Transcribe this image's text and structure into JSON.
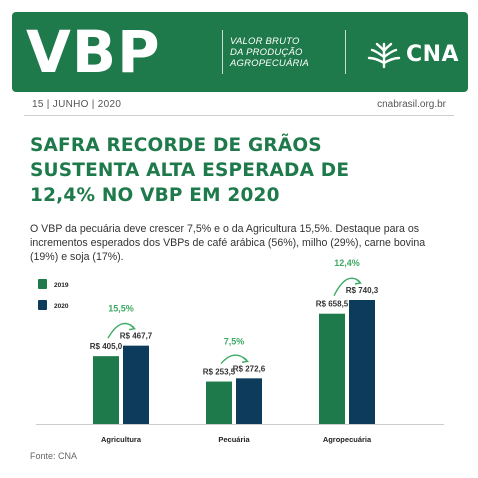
{
  "banner": {
    "brand": "VBP",
    "subtitle_lines": [
      "VALOR BRUTO",
      "DA PRODUÇÃO",
      "AGROPECUÁRIA"
    ],
    "logo_text": "CNA",
    "background": "#1e7a4a"
  },
  "dateline": "15 | JUNHO | 2020",
  "site": "cnabrasil.org.br",
  "headline_lines": [
    "SAFRA RECORDE DE GRÃOS",
    "SUSTENTA ALTA ESPERADA DE",
    "12,4% NO VBP EM 2020"
  ],
  "lead": "O VBP da pecuária deve crescer 7,5% e o da Agricultura 15,5%. Destaque para os incrementos esperados dos VBPs de café arábica (56%), milho (29%), carne bovina (19%) e soja (17%).",
  "source": "Fonte: CNA",
  "chart_data": {
    "type": "bar",
    "categories": [
      "Agricultura",
      "Pecuária",
      "Agropecuária"
    ],
    "series": [
      {
        "name": "2019",
        "color": "#1e7a4a",
        "values": [
          405.0,
          253.5,
          658.5
        ],
        "labels": [
          "R$ 405,0",
          "R$ 253,5",
          "R$ 658,5"
        ]
      },
      {
        "name": "2020",
        "color": "#0d3b5c",
        "values": [
          467.7,
          272.6,
          740.3
        ],
        "labels": [
          "R$ 467,7",
          "R$ 272,6",
          "R$ 740,3"
        ]
      }
    ],
    "growth_labels": [
      "15,5%",
      "7,5%",
      "12,4%"
    ],
    "legend": "top-left",
    "grid": false
  }
}
